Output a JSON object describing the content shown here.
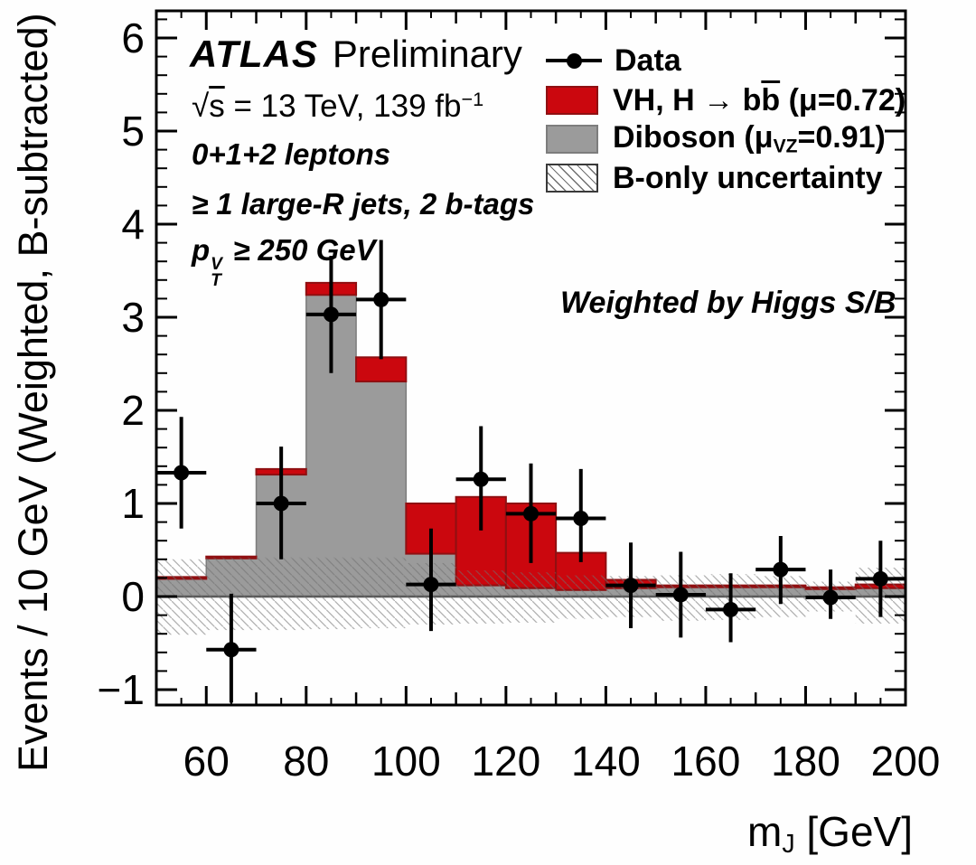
{
  "figure": {
    "atlas": "ATLAS",
    "preliminary": "Preliminary",
    "sqrt_s": {
      "radical": "√",
      "s": "s",
      "rest": " = 13 TeV, 139 fb",
      "sup": "−1"
    },
    "selection1": "0+1+2 leptons",
    "selection2": "≥ 1 large-R jets, 2 b-tags",
    "ptv": {
      "base": "p",
      "sup": "V",
      "sub": "T",
      "rest": " ≥ 250 GeV"
    },
    "annotation": "Weighted by Higgs S/B"
  },
  "legend": {
    "data_label": "Data",
    "signal": {
      "prefix": "VH, H → b",
      "bbar": "b",
      "suffix": " (μ=0.72)"
    },
    "diboson": {
      "prefix": "Diboson (μ",
      "sub": "VZ",
      "suffix": "=0.91)"
    },
    "uncertainty_label": "B-only uncertainty"
  },
  "axes": {
    "x_title": {
      "base": "m",
      "sub": "J",
      "rest": " [GeV]"
    },
    "y_title": "Events / 10 GeV (Weighted, B-subtracted)"
  },
  "colors": {
    "signal": "#cb070e",
    "signal_edge": "#8f1012",
    "diboson": "#9b9b9b",
    "diboson_edge": "#7d7d7d",
    "hatch": "#6f6f6f",
    "marker": "#000000"
  },
  "chart_data": {
    "type": "bar",
    "subtype": "stacked-histogram-with-data-overlay",
    "title": "ATLAS Preliminary, VH(H→bb) boosted, weighted by Higgs S/B",
    "xlabel": "m_J [GeV]",
    "ylabel": "Events / 10 GeV (Weighted, B-subtracted)",
    "xlim": [
      50,
      200
    ],
    "ylim": [
      -1.17,
      6.3
    ],
    "grid": false,
    "legend_position": "top-right-inside",
    "bin_edges": [
      50,
      60,
      70,
      80,
      90,
      100,
      110,
      120,
      130,
      140,
      150,
      160,
      170,
      180,
      190,
      200
    ],
    "series": [
      {
        "key": "diboson",
        "name": "Diboson (μ_VZ=0.91)",
        "color": "#9b9b9b",
        "values": [
          0.19,
          0.41,
          1.31,
          3.24,
          2.31,
          0.46,
          0.12,
          0.09,
          0.07,
          0.09,
          0.1,
          0.1,
          0.1,
          0.08,
          0.09
        ]
      },
      {
        "key": "signal",
        "name": "VH, H → bb̄ (μ=0.72)",
        "color": "#cb070e",
        "stacked_on": "diboson",
        "values": [
          0.02,
          0.02,
          0.06,
          0.13,
          0.26,
          0.54,
          0.95,
          0.91,
          0.4,
          0.09,
          0.02,
          0.02,
          0.02,
          0.02,
          0.04
        ]
      }
    ],
    "uncertainty_band": {
      "name": "B-only uncertainty",
      "hi": [
        0.4,
        0.42,
        0.42,
        0.42,
        0.42,
        0.36,
        0.28,
        0.26,
        0.23,
        0.22,
        0.23,
        0.24,
        0.22,
        0.16,
        0.31
      ],
      "lo": [
        -0.41,
        -0.36,
        -0.36,
        -0.35,
        -0.34,
        -0.3,
        -0.29,
        -0.28,
        -0.24,
        -0.22,
        -0.26,
        -0.25,
        -0.22,
        -0.16,
        -0.29
      ]
    },
    "data_points": {
      "name": "Data",
      "x": [
        55,
        65,
        75,
        85,
        95,
        105,
        115,
        125,
        135,
        145,
        155,
        165,
        175,
        185,
        195
      ],
      "y": [
        1.33,
        -0.57,
        1.0,
        3.03,
        3.19,
        0.13,
        1.26,
        0.89,
        0.84,
        0.12,
        0.02,
        -0.14,
        0.29,
        -0.01,
        0.19
      ],
      "y_hi": [
        1.93,
        0.03,
        1.61,
        3.66,
        3.83,
        0.73,
        1.83,
        1.43,
        1.37,
        0.58,
        0.48,
        0.25,
        0.65,
        0.29,
        0.6
      ],
      "y_lo": [
        0.73,
        -1.14,
        0.4,
        2.4,
        2.55,
        -0.37,
        0.71,
        0.36,
        0.37,
        -0.34,
        -0.44,
        -0.49,
        -0.08,
        -0.24,
        -0.22
      ],
      "x_err": 5
    },
    "xticks_major": [
      60,
      80,
      100,
      120,
      140,
      160,
      180,
      200
    ],
    "xticks_medium": [
      70,
      90,
      110,
      130,
      150,
      170,
      190
    ],
    "xtick_minor_step": 5,
    "yticks": [
      {
        "v": -1,
        "label": "−1"
      },
      {
        "v": 0,
        "label": "0"
      },
      {
        "v": 1,
        "label": "1"
      },
      {
        "v": 2,
        "label": "2"
      },
      {
        "v": 3,
        "label": "3"
      },
      {
        "v": 4,
        "label": "4"
      },
      {
        "v": 5,
        "label": "5"
      },
      {
        "v": 6,
        "label": "6"
      }
    ],
    "ytick_minor_step": 0.2
  }
}
